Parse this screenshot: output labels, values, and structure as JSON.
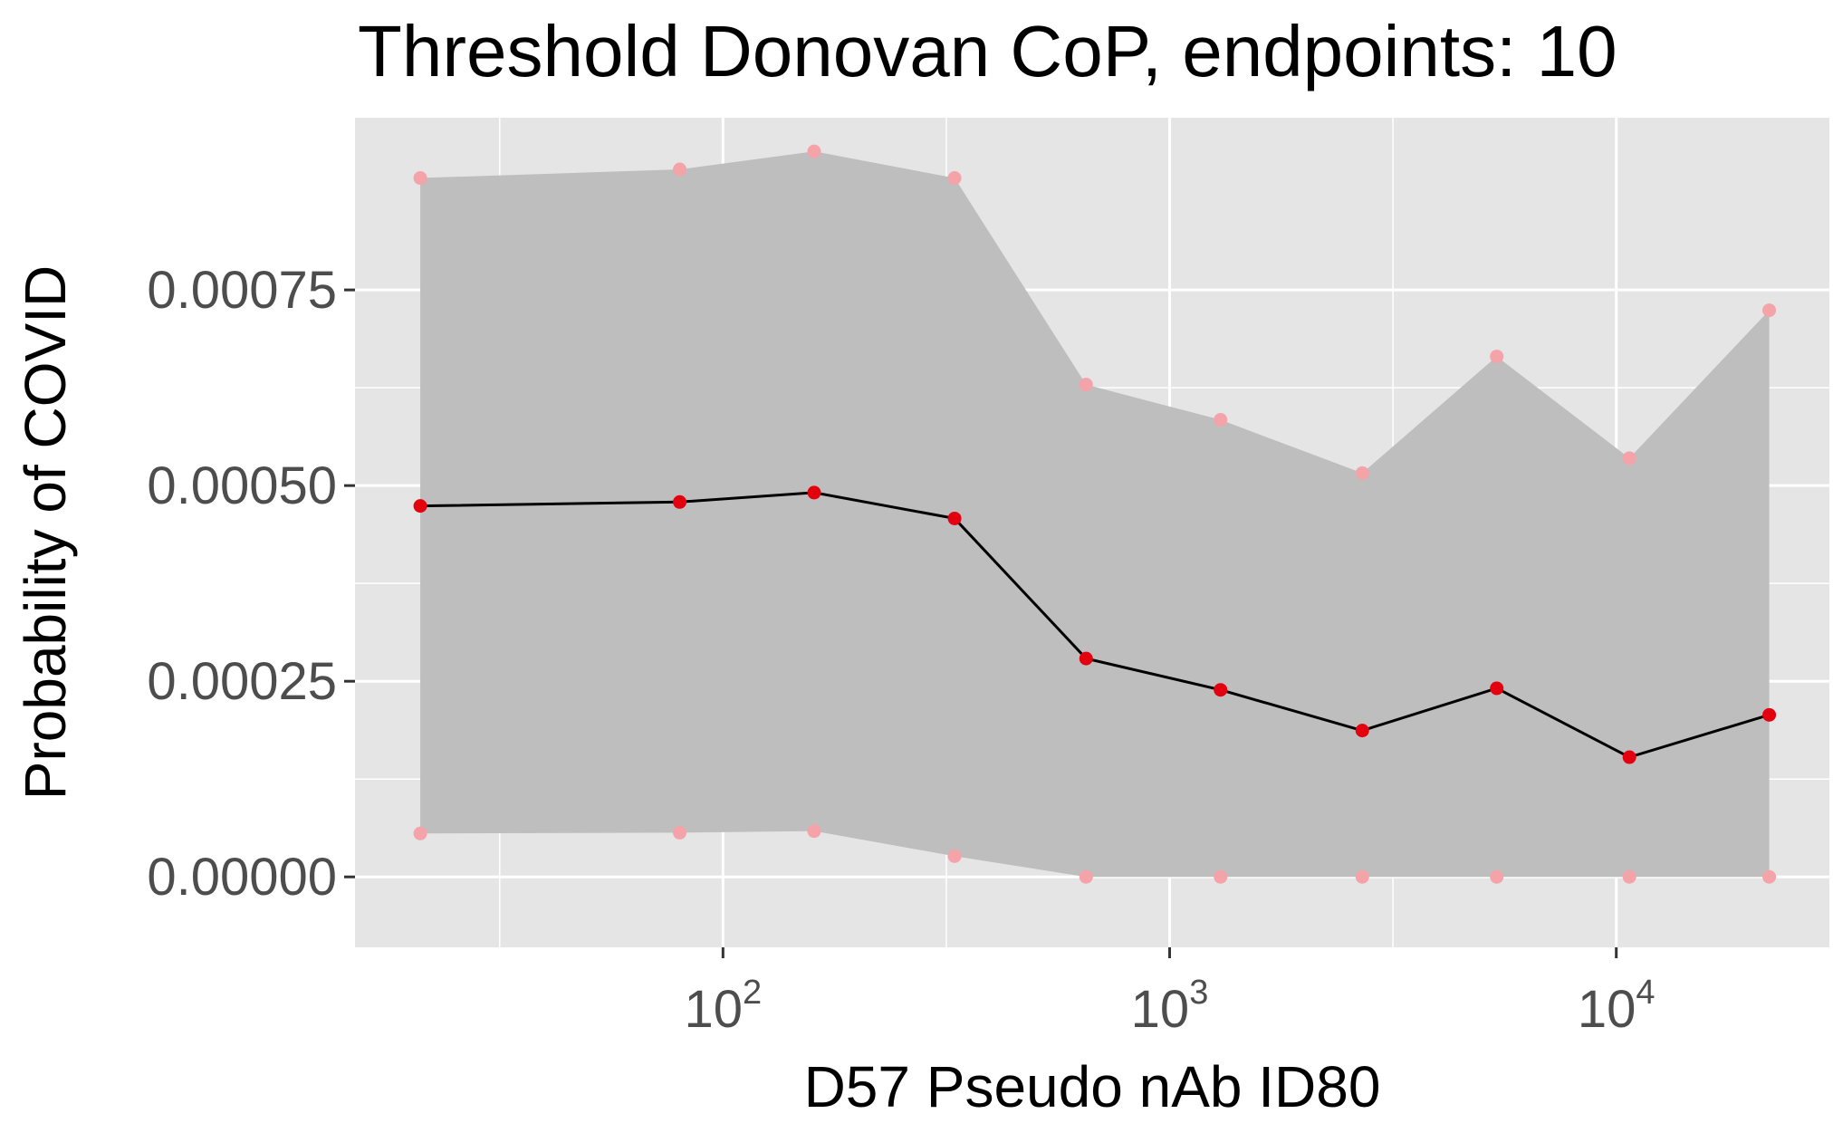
{
  "chart_data": {
    "type": "line",
    "title": "Threshold Donovan CoP, endpoints: 10",
    "xlabel": "D57 Pseudo nAb ID80",
    "ylabel": "Probability of COVID",
    "x_scale": "log10",
    "xlim": [
      15,
      30000
    ],
    "ylim": [
      -9e-05,
      0.00097
    ],
    "x_ticks": [
      {
        "value": 100,
        "base": "10",
        "exp": "2"
      },
      {
        "value": 1000,
        "base": "10",
        "exp": "3"
      },
      {
        "value": 10000,
        "base": "10",
        "exp": "4"
      }
    ],
    "y_ticks": [
      {
        "value": 0.0,
        "label": "0.00000"
      },
      {
        "value": 0.00025,
        "label": "0.00025"
      },
      {
        "value": 0.0005,
        "label": "0.00050"
      },
      {
        "value": 0.00075,
        "label": "0.00075"
      }
    ],
    "grid": true,
    "series": [
      {
        "x": [
          21,
          80,
          160,
          330,
          650,
          1300,
          2700,
          5400,
          10700,
          22000
        ],
        "y": [
          0.000474,
          0.000479,
          0.000491,
          0.000458,
          0.000279,
          0.000239,
          0.000187,
          0.000241,
          0.000153,
          0.000207
        ],
        "lower": [
          5.55e-05,
          5.65e-05,
          5.85e-05,
          2.65e-05,
          0.0,
          0.0,
          0.0,
          0.0,
          0.0,
          0.0
        ],
        "upper": [
          0.000893,
          0.000904,
          0.000927,
          0.000893,
          0.000629,
          0.000584,
          0.000516,
          0.000665,
          0.000535,
          0.000724
        ]
      }
    ],
    "colors": {
      "panel_background": "#e5e5e5",
      "grid": "#ffffff",
      "ribbon": "#bebebe",
      "line": "#000000",
      "point": "#e3000f",
      "bound_point": "#f4a3a8"
    }
  }
}
